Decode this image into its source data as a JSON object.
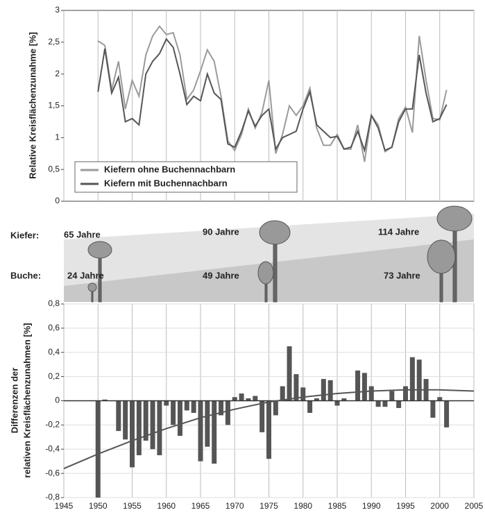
{
  "chart_data": [
    {
      "type": "line",
      "y_label": "Relative Kreisflächenzunahme [%]",
      "x": [
        1950,
        1951,
        1952,
        1953,
        1954,
        1955,
        1956,
        1957,
        1958,
        1959,
        1960,
        1961,
        1962,
        1963,
        1964,
        1965,
        1966,
        1967,
        1968,
        1969,
        1970,
        1971,
        1972,
        1973,
        1974,
        1975,
        1976,
        1977,
        1978,
        1979,
        1980,
        1981,
        1982,
        1983,
        1984,
        1985,
        1986,
        1987,
        1988,
        1989,
        1990,
        1991,
        1992,
        1993,
        1994,
        1995,
        1996,
        1997,
        1998,
        1999,
        2000,
        2001
      ],
      "series": [
        {
          "name": "Kiefern ohne Buchennachbarn",
          "color": "#9a9a9a",
          "values": [
            2.52,
            2.45,
            1.75,
            2.2,
            1.45,
            1.9,
            1.65,
            2.3,
            2.6,
            2.75,
            2.62,
            2.65,
            2.3,
            1.6,
            1.75,
            2.05,
            2.38,
            2.2,
            1.65,
            0.95,
            0.8,
            1.05,
            1.45,
            1.15,
            1.4,
            1.9,
            0.75,
            1.05,
            1.5,
            1.35,
            1.5,
            1.78,
            1.15,
            0.88,
            0.88,
            1.05,
            0.82,
            0.82,
            1.2,
            0.62,
            1.35,
            1.2,
            0.78,
            0.85,
            1.3,
            1.48,
            1.08,
            2.6,
            1.9,
            1.3,
            1.28,
            1.75
          ]
        },
        {
          "name": "Kiefern mit Buchennachbarn",
          "color": "#555555",
          "values": [
            1.72,
            2.4,
            1.7,
            1.95,
            1.25,
            1.3,
            1.2,
            2.0,
            2.2,
            2.32,
            2.55,
            2.42,
            2.0,
            1.52,
            1.65,
            1.58,
            2.0,
            1.7,
            1.6,
            0.9,
            0.85,
            1.1,
            1.42,
            1.18,
            1.35,
            1.45,
            0.82,
            1.0,
            1.05,
            1.1,
            1.45,
            1.72,
            1.2,
            1.1,
            1.0,
            1.02,
            0.82,
            0.85,
            1.1,
            0.8,
            1.35,
            1.15,
            0.8,
            0.85,
            1.25,
            1.45,
            1.45,
            2.3,
            1.7,
            1.25,
            1.3,
            1.52
          ]
        }
      ],
      "xlim": [
        1945,
        2005
      ],
      "ylim": [
        0,
        3
      ],
      "yticks": [
        0,
        {
          "value": 0.5,
          "label": "0,5"
        },
        1,
        {
          "value": 1.5,
          "label": "1,5"
        },
        2,
        {
          "value": 2.5,
          "label": "2,5"
        },
        3
      ],
      "legend": "lower left"
    },
    {
      "type": "bar",
      "y_label": [
        "Differenzen der",
        "relativen Kreisflächenzunahmen [%]"
      ],
      "x": [
        1950,
        1951,
        1952,
        1953,
        1954,
        1955,
        1956,
        1957,
        1958,
        1959,
        1960,
        1961,
        1962,
        1963,
        1964,
        1965,
        1966,
        1967,
        1968,
        1969,
        1970,
        1971,
        1972,
        1973,
        1974,
        1975,
        1976,
        1977,
        1978,
        1979,
        1980,
        1981,
        1982,
        1983,
        1984,
        1985,
        1986,
        1987,
        1988,
        1989,
        1990,
        1991,
        1992,
        1993,
        1994,
        1995,
        1996,
        1997,
        1998,
        1999,
        2000,
        2001
      ],
      "values": [
        -0.8,
        0.01,
        0,
        -0.25,
        -0.32,
        -0.55,
        -0.45,
        -0.33,
        -0.4,
        -0.45,
        -0.04,
        -0.2,
        -0.29,
        -0.08,
        -0.1,
        -0.5,
        -0.38,
        -0.52,
        -0.12,
        -0.2,
        0.03,
        0.06,
        0.02,
        0.04,
        -0.26,
        -0.48,
        -0.12,
        0.12,
        0.45,
        0.22,
        0.11,
        -0.1,
        0.02,
        0.18,
        0.17,
        -0.04,
        0.02,
        0,
        0.25,
        0.23,
        0.12,
        -0.05,
        -0.05,
        0.08,
        -0.06,
        0.12,
        0.36,
        0.34,
        0.18,
        -0.14,
        0.03,
        -0.22
      ],
      "color": "#555555",
      "trend": {
        "x": [
          1945,
          1950,
          1955,
          1960,
          1965,
          1970,
          1975,
          1980,
          1985,
          1990,
          1995,
          2000,
          2005
        ],
        "values": [
          -0.56,
          -0.44,
          -0.33,
          -0.23,
          -0.14,
          -0.07,
          -0.01,
          0.03,
          0.06,
          0.08,
          0.09,
          0.09,
          0.08
        ],
        "color": "#555555"
      },
      "xlim": [
        1945,
        2005
      ],
      "xticks": [
        1945,
        1950,
        1955,
        1960,
        1965,
        1970,
        1975,
        1980,
        1985,
        1990,
        1995,
        2000,
        2005
      ],
      "ylim": [
        -0.8,
        0.8
      ],
      "yticks": [
        {
          "value": -0.8,
          "label": "-0,8"
        },
        {
          "value": -0.6,
          "label": "-0,6"
        },
        {
          "value": -0.4,
          "label": "-0,4"
        },
        {
          "value": -0.2,
          "label": "-0,2"
        },
        0,
        {
          "value": 0.2,
          "label": "0,2"
        },
        {
          "value": 0.4,
          "label": "0,4"
        },
        {
          "value": 0.6,
          "label": "0,6"
        },
        {
          "value": 0.8,
          "label": "0,8"
        }
      ],
      "grid": true
    }
  ],
  "illustration": {
    "kiefer_label": "Kiefer:",
    "buche_label": "Buche:",
    "kiefer_ages": [
      "65 Jahre",
      "90 Jahre",
      "114 Jahre"
    ],
    "buche_ages": [
      "24 Jahre",
      "49 Jahre",
      "73 Jahre"
    ]
  }
}
